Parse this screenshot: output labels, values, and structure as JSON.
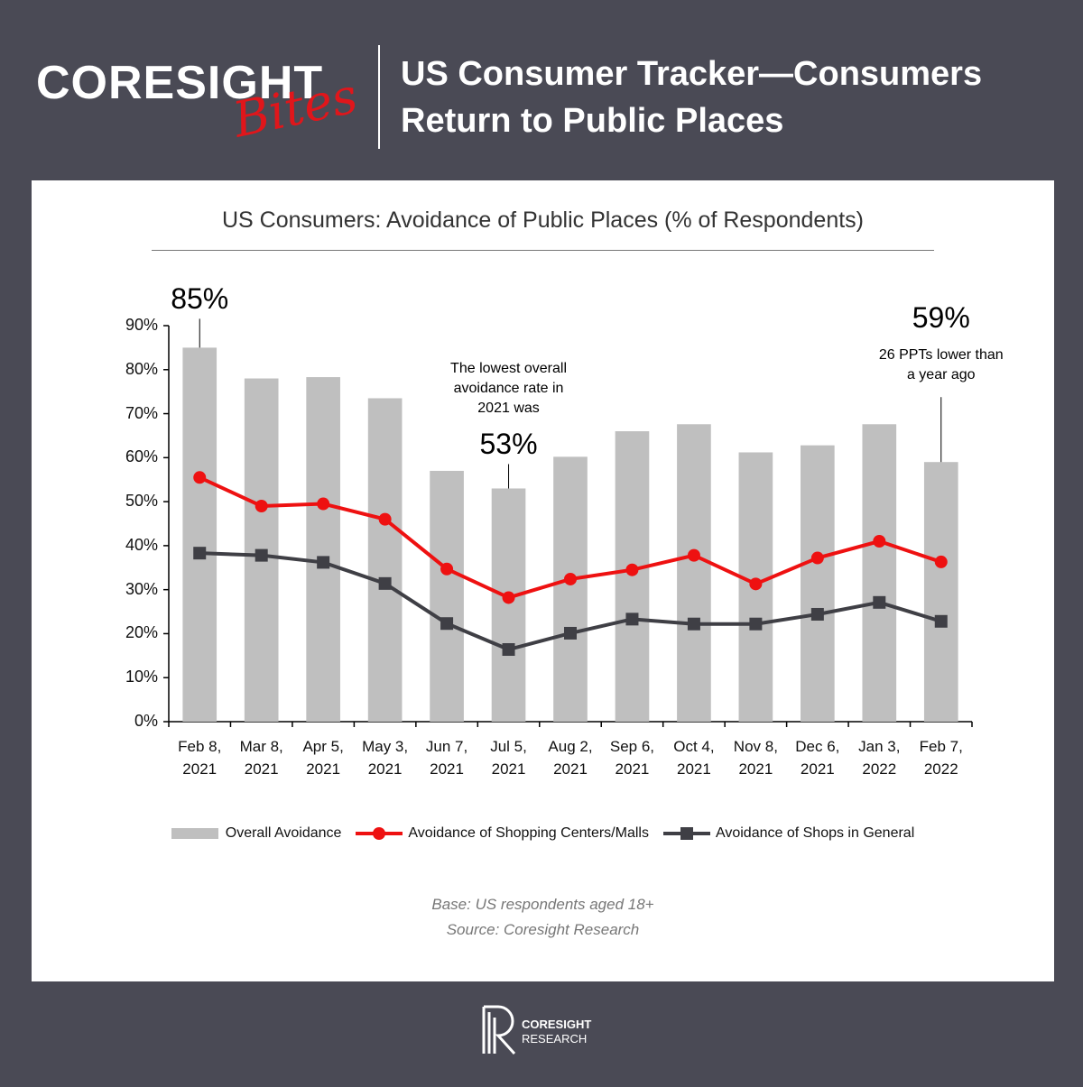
{
  "header": {
    "brand": "CORESIGHT",
    "brand_tag": "Bites",
    "title": "US Consumer Tracker—Consumers Return to Public Places"
  },
  "chart_data": {
    "type": "combo",
    "title": "US Consumers: Avoidance of Public Places (% of Respondents)",
    "categories": [
      "Feb 8, 2021",
      "Mar 8, 2021",
      "Apr 5, 2021",
      "May 3, 2021",
      "Jun 7, 2021",
      "Jul 5, 2021",
      "Aug 2, 2021",
      "Sep 6, 2021",
      "Oct 4, 2021",
      "Nov 8, 2021",
      "Dec 6, 2021",
      "Jan 3, 2022",
      "Feb 7, 2022"
    ],
    "series": [
      {
        "name": "Overall Avoidance",
        "type": "bar",
        "color": "#bfbfbf",
        "values": [
          85,
          78,
          78.3,
          73.5,
          57,
          53,
          60.2,
          66,
          67.6,
          61.2,
          62.8,
          67.6,
          59
        ],
        "value_labels": [
          "85%",
          null,
          null,
          null,
          null,
          "53%",
          null,
          null,
          null,
          null,
          null,
          null,
          "59%"
        ]
      },
      {
        "name": "Avoidance of Shopping Centers/Malls",
        "type": "line",
        "marker": "circle",
        "color": "#ee1111",
        "values": [
          55.5,
          49,
          49.5,
          46,
          34.7,
          28.2,
          32.4,
          34.5,
          37.8,
          31.3,
          37.2,
          41,
          36.3
        ]
      },
      {
        "name": "Avoidance of Shops in General",
        "type": "line",
        "marker": "square",
        "color": "#3f3f45",
        "values": [
          38.3,
          37.8,
          36.2,
          31.4,
          22.3,
          16.4,
          20.1,
          23.3,
          22.2,
          22.2,
          24.4,
          27.1,
          22.8
        ]
      }
    ],
    "annotations": [
      "The lowest overall avoidance rate in 2021 was",
      "26 PPTs lower than a year ago"
    ],
    "ylim": [
      0,
      90
    ],
    "yticks": [
      {
        "value": 0,
        "label": "0%"
      },
      {
        "value": 10,
        "label": "10%"
      },
      {
        "value": 20,
        "label": "20%"
      },
      {
        "value": 30,
        "label": "30%"
      },
      {
        "value": 40,
        "label": "40%"
      },
      {
        "value": 50,
        "label": "50%"
      },
      {
        "value": 60,
        "label": "60%"
      },
      {
        "value": 70,
        "label": "70%"
      },
      {
        "value": 80,
        "label": "80%"
      },
      {
        "value": 90,
        "label": "90%"
      }
    ],
    "grid": false,
    "legend": "bottom"
  },
  "notes": [
    "Base: US respondents aged 18+",
    "Source: Coresight Research"
  ],
  "footer": {
    "logo_top": "CORESIGHT",
    "logo_bottom": "RESEARCH"
  }
}
